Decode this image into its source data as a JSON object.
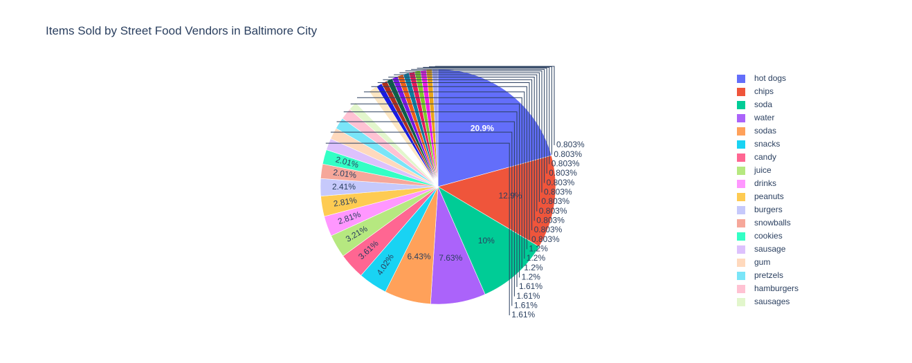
{
  "chart_data": {
    "type": "pie",
    "title": "Items Sold by Street Food Vendors in Baltimore City",
    "legend_position": "right",
    "slices": [
      {
        "label": "hot dogs",
        "percent": 20.9,
        "text": "20.9%",
        "color": "#636efa",
        "text_color": "#ffffff",
        "bold": true
      },
      {
        "label": "chips",
        "percent": 12.9,
        "text": "12.9%",
        "color": "#EF553B",
        "text_color": "#2a3f5f"
      },
      {
        "label": "soda",
        "percent": 10.0,
        "text": "10%",
        "color": "#00cc96",
        "text_color": "#2a3f5f"
      },
      {
        "label": "water",
        "percent": 7.63,
        "text": "7.63%",
        "color": "#ab63fa",
        "text_color": "#2a3f5f"
      },
      {
        "label": "sodas",
        "percent": 6.43,
        "text": "6.43%",
        "color": "#FFA15A",
        "text_color": "#2a3f5f"
      },
      {
        "label": "snacks",
        "percent": 4.02,
        "text": "4.02%",
        "color": "#19d3f3",
        "text_color": "#2a3f5f",
        "rotate": true
      },
      {
        "label": "candy",
        "percent": 3.61,
        "text": "3.61%",
        "color": "#FF6692",
        "text_color": "#2a3f5f",
        "rotate": true
      },
      {
        "label": "juice",
        "percent": 3.21,
        "text": "3.21%",
        "color": "#B6E880",
        "text_color": "#2a3f5f",
        "rotate": true
      },
      {
        "label": "drinks",
        "percent": 2.81,
        "text": "2.81%",
        "color": "#FF97FF",
        "text_color": "#2a3f5f",
        "rotate": true
      },
      {
        "label": "peanuts",
        "percent": 2.81,
        "text": "2.81%",
        "color": "#FECB52",
        "text_color": "#2a3f5f",
        "rotate": true
      },
      {
        "label": "burgers",
        "percent": 2.41,
        "text": "2.41%",
        "color": "#c6c9fb",
        "text_color": "#2a3f5f",
        "rotate": true
      },
      {
        "label": "snowballs",
        "percent": 2.01,
        "text": "2.01%",
        "color": "#f6a79a",
        "text_color": "#2a3f5f",
        "rotate": true
      },
      {
        "label": "cookies",
        "percent": 2.01,
        "text": "2.01%",
        "color": "#33ffc5",
        "text_color": "#2a3f5f",
        "rotate": true
      },
      {
        "label": "sausage",
        "percent": 1.61,
        "text": "1.61%",
        "color": "#ddc1fd",
        "outside": true
      },
      {
        "label": "gum",
        "percent": 1.61,
        "text": "1.61%",
        "color": "#ffd9bd",
        "outside": true
      },
      {
        "label": "pretzels",
        "percent": 1.61,
        "text": "1.61%",
        "color": "#7ae5f8",
        "outside": true
      },
      {
        "label": "hamburgers",
        "percent": 1.61,
        "text": "1.61%",
        "color": "#ffc2d3",
        "outside": true
      },
      {
        "label": "sausages",
        "percent": 1.2,
        "text": "1.2%",
        "color": "#e2f6cc",
        "outside": true
      },
      {
        "label": "",
        "percent": 1.2,
        "text": "1.2%",
        "color": "#ffffff",
        "outside": true
      },
      {
        "label": "",
        "percent": 1.2,
        "text": "1.2%",
        "color": "#ffffff",
        "outside": true
      },
      {
        "label": "",
        "percent": 1.2,
        "text": "1.2%",
        "color": "#fde6c2",
        "outside": true
      },
      {
        "label": "",
        "percent": 0.803,
        "text": "0.803%",
        "color": "#1a1ae6",
        "outside": true
      },
      {
        "label": "",
        "percent": 0.803,
        "text": "0.803%",
        "color": "#b02e1c",
        "outside": true
      },
      {
        "label": "",
        "percent": 0.803,
        "text": "0.803%",
        "color": "#0b6146",
        "outside": true
      },
      {
        "label": "",
        "percent": 0.803,
        "text": "0.803%",
        "color": "#7b16e8",
        "outside": true
      },
      {
        "label": "",
        "percent": 0.803,
        "text": "0.803%",
        "color": "#f15e16",
        "outside": true
      },
      {
        "label": "",
        "percent": 0.803,
        "text": "0.803%",
        "color": "#0f7fa0",
        "outside": true
      },
      {
        "label": "",
        "percent": 0.803,
        "text": "0.803%",
        "color": "#e8195a",
        "outside": true
      },
      {
        "label": "",
        "percent": 0.803,
        "text": "0.803%",
        "color": "#7fcb2a",
        "outside": true
      },
      {
        "label": "",
        "percent": 0.803,
        "text": "0.803%",
        "color": "#f21ee8",
        "outside": true
      },
      {
        "label": "",
        "percent": 0.803,
        "text": "0.803%",
        "color": "#e8a418",
        "outside": true
      },
      {
        "label": "",
        "percent": 0.803,
        "text": "0.803%",
        "color": "#a6a9f8",
        "outside": true
      }
    ]
  }
}
